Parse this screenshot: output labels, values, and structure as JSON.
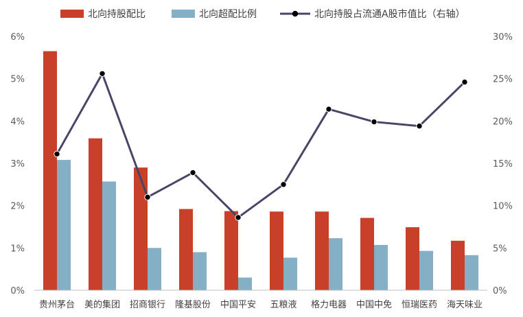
{
  "chart_data": {
    "type": "bar",
    "categories": [
      "贵州茅台",
      "美的集团",
      "招商银行",
      "隆基股份",
      "中国平安",
      "五粮液",
      "格力电器",
      "中国中免",
      "恒瑞医药",
      "海天味业"
    ],
    "series": [
      {
        "name": "北向持股配比",
        "kind": "bar",
        "axis": "left",
        "color": "#C8402A",
        "values": [
          5.65,
          3.59,
          2.9,
          1.92,
          1.87,
          1.86,
          1.86,
          1.71,
          1.49,
          1.17
        ]
      },
      {
        "name": "北向超配比例",
        "kind": "bar",
        "axis": "left",
        "color": "#84AFC5",
        "values": [
          3.08,
          2.57,
          1.0,
          0.9,
          0.3,
          0.77,
          1.23,
          1.07,
          0.93,
          0.83
        ]
      },
      {
        "name": "北向持股占流通A股市值比（右轴）",
        "kind": "line",
        "axis": "right",
        "color": "#4A4566",
        "marker": "#000000",
        "values": [
          16.1,
          25.6,
          11.0,
          13.9,
          8.6,
          12.5,
          21.4,
          19.9,
          19.4,
          24.6
        ]
      }
    ],
    "y_left": {
      "min": 0,
      "max": 6,
      "step": 1,
      "tick_labels": [
        "0%",
        "1%",
        "2%",
        "3%",
        "4%",
        "5%",
        "6%"
      ]
    },
    "y_right": {
      "min": 0,
      "max": 30,
      "step": 5,
      "tick_labels": [
        "0%",
        "5%",
        "10%",
        "15%",
        "20%",
        "25%",
        "30%"
      ]
    },
    "grid": false,
    "legend_position": "top"
  }
}
